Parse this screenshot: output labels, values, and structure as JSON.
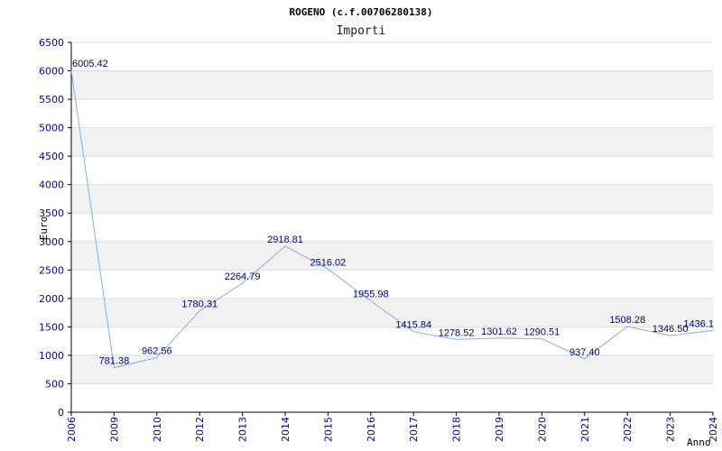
{
  "chart_data": {
    "type": "line",
    "title": "ROGENO (c.f.00706280138)",
    "subtitle": "Importi",
    "xlabel": "Anno",
    "ylabel": "Euro",
    "categories": [
      "2006",
      "2009",
      "2010",
      "2012",
      "2013",
      "2014",
      "2015",
      "2016",
      "2017",
      "2018",
      "2019",
      "2020",
      "2021",
      "2022",
      "2023",
      "2024"
    ],
    "series": [
      {
        "values": [
          6005.42,
          781.38,
          962.56,
          1780.31,
          2264.79,
          2918.81,
          2516.02,
          1955.98,
          1415.84,
          1278.52,
          1301.62,
          1290.51,
          937.4,
          1508.28,
          1346.5,
          1436.1
        ],
        "labels": [
          "6005.42",
          "781.38",
          "962.56",
          "1780.31",
          "2264.79",
          "2918.81",
          "2516.02",
          "1955.98",
          "1415.84",
          "1278.52",
          "1301.62",
          "1290.51",
          "937.40",
          "1508.28",
          "1346.50",
          "1436.1"
        ]
      }
    ],
    "ylim": [
      0,
      6500
    ],
    "yticks": [
      0,
      500,
      1000,
      1500,
      2000,
      2500,
      3000,
      3500,
      4000,
      4500,
      5000,
      5500,
      6000,
      6500
    ],
    "grid": true,
    "colors": {
      "line": "#7fb2e5",
      "band": "#f2f2f2",
      "gridline": "#dddddd",
      "axis": "#000000",
      "tick_text": "#0000aa",
      "label_text": "#000080"
    }
  }
}
